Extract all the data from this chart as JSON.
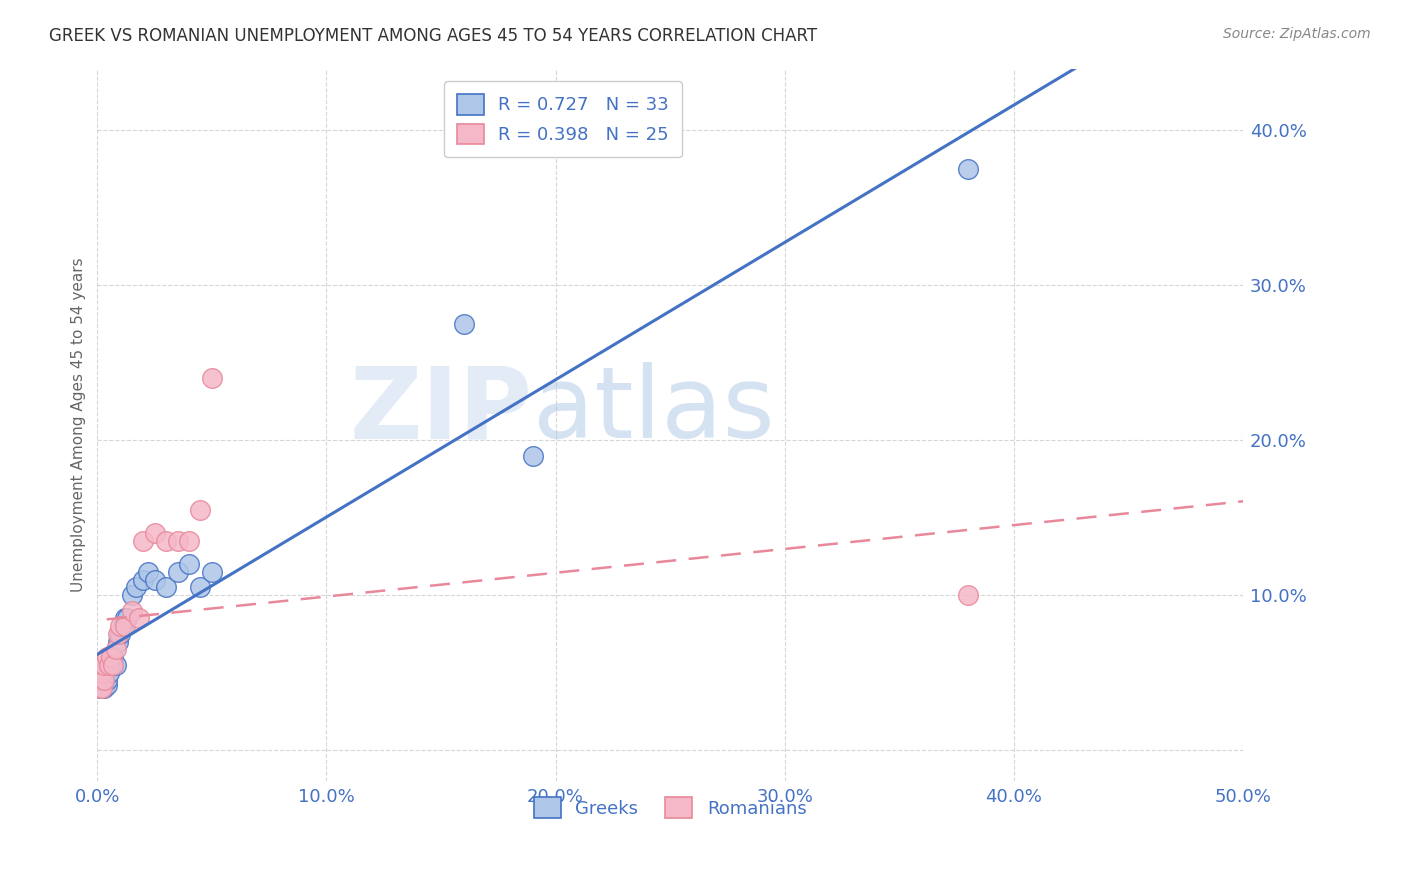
{
  "title": "GREEK VS ROMANIAN UNEMPLOYMENT AMONG AGES 45 TO 54 YEARS CORRELATION CHART",
  "source": "Source: ZipAtlas.com",
  "ylabel": "Unemployment Among Ages 45 to 54 years",
  "xlim": [
    0.0,
    0.5
  ],
  "ylim": [
    -0.02,
    0.44
  ],
  "xticks": [
    0.0,
    0.1,
    0.2,
    0.3,
    0.4,
    0.5
  ],
  "yticks": [
    0.0,
    0.1,
    0.2,
    0.3,
    0.4
  ],
  "xticklabels": [
    "0.0%",
    "10.0%",
    "20.0%",
    "30.0%",
    "40.0%",
    "50.0%"
  ],
  "yticklabels": [
    "",
    "10.0%",
    "20.0%",
    "30.0%",
    "40.0%"
  ],
  "legend_r1": "R = 0.727",
  "legend_n1": "N = 33",
  "legend_r2": "R = 0.398",
  "legend_n2": "N = 25",
  "greek_color": "#aec6e8",
  "romanian_color": "#f5b8c8",
  "greek_line_color": "#4472c4",
  "romanian_line_color": "#e8889a",
  "greek_x": [
    0.001,
    0.001,
    0.002,
    0.002,
    0.002,
    0.003,
    0.003,
    0.003,
    0.004,
    0.004,
    0.005,
    0.005,
    0.006,
    0.007,
    0.008,
    0.009,
    0.01,
    0.011,
    0.012,
    0.013,
    0.015,
    0.017,
    0.02,
    0.022,
    0.025,
    0.03,
    0.035,
    0.04,
    0.045,
    0.05,
    0.16,
    0.19,
    0.38
  ],
  "greek_y": [
    0.04,
    0.045,
    0.04,
    0.042,
    0.05,
    0.04,
    0.045,
    0.05,
    0.042,
    0.045,
    0.05,
    0.055,
    0.055,
    0.06,
    0.055,
    0.07,
    0.075,
    0.08,
    0.085,
    0.085,
    0.1,
    0.105,
    0.11,
    0.115,
    0.11,
    0.105,
    0.115,
    0.12,
    0.105,
    0.115,
    0.275,
    0.19,
    0.375
  ],
  "romanian_x": [
    0.001,
    0.001,
    0.001,
    0.002,
    0.002,
    0.003,
    0.003,
    0.004,
    0.005,
    0.006,
    0.007,
    0.008,
    0.009,
    0.01,
    0.012,
    0.015,
    0.018,
    0.02,
    0.025,
    0.03,
    0.035,
    0.04,
    0.045,
    0.05,
    0.38
  ],
  "romanian_y": [
    0.04,
    0.045,
    0.05,
    0.04,
    0.05,
    0.045,
    0.055,
    0.06,
    0.055,
    0.06,
    0.055,
    0.065,
    0.075,
    0.08,
    0.08,
    0.09,
    0.085,
    0.135,
    0.14,
    0.135,
    0.135,
    0.135,
    0.155,
    0.24,
    0.1
  ],
  "background_color": "#ffffff",
  "grid_color": "#cccccc"
}
